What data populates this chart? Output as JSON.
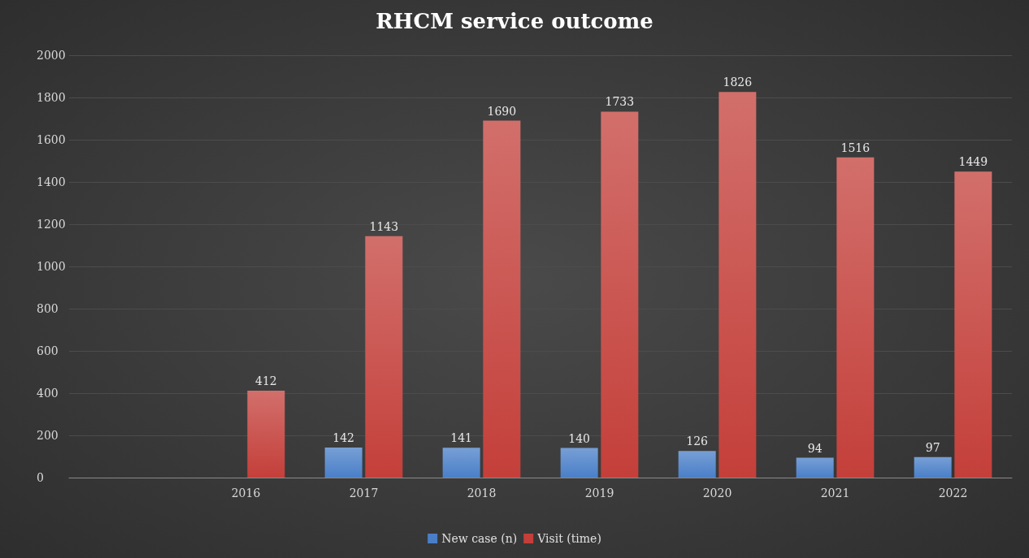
{
  "chart_data": {
    "type": "bar",
    "title": "RHCM service outcome",
    "categories": [
      null,
      "2016",
      "2017",
      "2018",
      "2019",
      "2020",
      "2021",
      "2022"
    ],
    "series": [
      {
        "name": "New case (n)",
        "color": "#4a7fc8",
        "values": [
          null,
          null,
          142,
          141,
          140,
          126,
          94,
          97
        ]
      },
      {
        "name": "Visit (time)",
        "color": "#c43f3a",
        "values": [
          null,
          412,
          1143,
          1690,
          1733,
          1826,
          1516,
          1449
        ]
      }
    ],
    "ylim": [
      0,
      2000
    ],
    "yticks": [
      0,
      200,
      400,
      600,
      800,
      1000,
      1200,
      1400,
      1600,
      1800,
      2000
    ],
    "grid": "y",
    "legend": "bottom",
    "data_labels": true
  }
}
